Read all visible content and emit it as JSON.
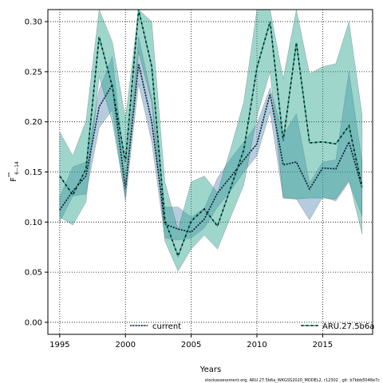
{
  "chart_data": {
    "type": "line",
    "title": "",
    "xlabel": "Years",
    "ylabel": "F",
    "ylabel_subscript": "6−14",
    "xlim": [
      1994.1,
      2018.8
    ],
    "ylim": [
      -0.012,
      0.312
    ],
    "x_ticks": [
      1995,
      2000,
      2005,
      2010,
      2015
    ],
    "y_ticks": [
      "0.00",
      "0.05",
      "0.10",
      "0.15",
      "0.20",
      "0.25",
      "0.30"
    ],
    "grid": true,
    "legend_position": "bottom",
    "footer_note": "stockassessment.org, ARU.27.5b6a_WKGSS2020_MODEL2, r12302 , git: b7bbb5048e7c",
    "x": [
      1995,
      1996,
      1997,
      1998,
      1999,
      2000,
      2001,
      2002,
      2003,
      2004,
      2005,
      2006,
      2007,
      2008,
      2009,
      2010,
      2011,
      2012,
      2013,
      2014,
      2015,
      2016,
      2017,
      2018
    ],
    "series": [
      {
        "name": "current",
        "color": "#5a8fb8",
        "line_style": "dotted",
        "values": [
          0.112,
          0.131,
          0.146,
          0.215,
          0.237,
          0.133,
          0.258,
          0.2,
          0.098,
          0.093,
          0.09,
          0.103,
          0.129,
          0.145,
          0.162,
          0.178,
          0.228,
          0.157,
          0.16,
          0.133,
          0.154,
          0.153,
          0.18,
          0.134
        ],
        "lower": [
          0.1,
          0.126,
          0.128,
          0.194,
          0.212,
          0.121,
          0.238,
          0.18,
          0.084,
          0.082,
          0.084,
          0.094,
          0.115,
          0.131,
          0.15,
          0.166,
          0.21,
          0.124,
          0.123,
          0.102,
          0.125,
          0.121,
          0.14,
          0.106
        ],
        "upper": [
          0.125,
          0.155,
          0.16,
          0.232,
          0.265,
          0.147,
          0.285,
          0.224,
          0.115,
          0.115,
          0.105,
          0.114,
          0.144,
          0.163,
          0.18,
          0.198,
          0.234,
          0.187,
          0.208,
          0.139,
          0.16,
          0.162,
          0.25,
          0.16
        ]
      },
      {
        "name": "ARU.27.5b6a",
        "color": "#2ba58f",
        "line_style": "dashed",
        "values": [
          0.146,
          0.127,
          0.153,
          0.285,
          0.235,
          0.16,
          0.312,
          0.255,
          0.102,
          0.066,
          0.101,
          0.113,
          0.096,
          0.134,
          0.172,
          0.254,
          0.3,
          0.181,
          0.279,
          0.179,
          0.18,
          0.178,
          0.196,
          0.135
        ],
        "lower": [
          0.105,
          0.097,
          0.12,
          0.245,
          0.2,
          0.125,
          0.27,
          0.22,
          0.081,
          0.051,
          0.073,
          0.087,
          0.073,
          0.105,
          0.137,
          0.205,
          0.25,
          0.124,
          0.123,
          0.124,
          0.124,
          0.123,
          0.142,
          0.088
        ],
        "upper": [
          0.19,
          0.166,
          0.201,
          0.312,
          0.28,
          0.203,
          0.312,
          0.3,
          0.14,
          0.092,
          0.14,
          0.146,
          0.129,
          0.173,
          0.22,
          0.312,
          0.312,
          0.243,
          0.312,
          0.248,
          0.255,
          0.258,
          0.3,
          0.207
        ]
      }
    ]
  }
}
